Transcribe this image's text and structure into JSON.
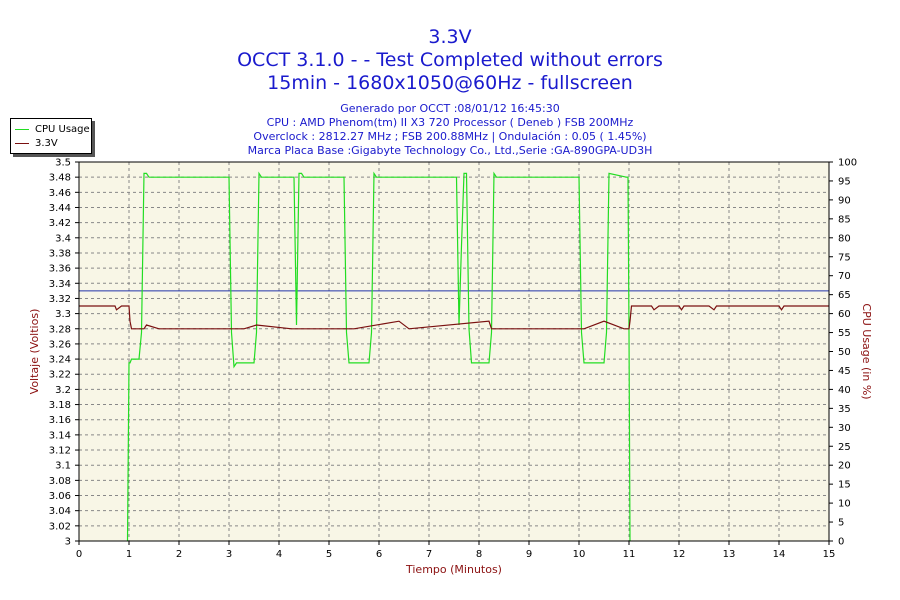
{
  "titles": {
    "line1": "3.3V",
    "line2": "OCCT 3.1.0 -  - Test Completed without errors",
    "line3": "15min - 1680x1050@60Hz - fullscreen"
  },
  "info": {
    "line1": "Generado por OCCT :08/01/12 16:45:30",
    "line2": "CPU : AMD Phenom(tm) II X3 720 Processor ( Deneb ) FSB 200MHz",
    "line3": "Overclock : 2812.27 MHz ; FSB 200.88MHz | Ondulación : 0.05 ( 1.45%)",
    "line4": "Marca Placa Base :Gigabyte Technology Co., Ltd.,Serie :GA-890GPA-UD3H"
  },
  "colors": {
    "cpu": "#22dd22",
    "voltage": "#7a1010",
    "ref_line": "#2233aa",
    "plot_bg": "#f8f6e6",
    "grid": "#888888",
    "axis_text": "#000000",
    "axis_label": "#8b1010",
    "xlabel": "#8b1010"
  },
  "chart_data": {
    "type": "line",
    "xlabel": "Tiempo (Minutos)",
    "ylabel_left": "Voltaje (Voltios)",
    "ylabel_right": "CPU Usage (in %)",
    "xlim": [
      0,
      15
    ],
    "ylim_left": [
      3.0,
      3.5
    ],
    "ylim_right": [
      0,
      100
    ],
    "x_ticks": [
      0,
      1,
      2,
      3,
      4,
      5,
      6,
      7,
      8,
      9,
      10,
      11,
      12,
      13,
      14,
      15
    ],
    "y_left_ticks": [
      3.5,
      3.48,
      3.46,
      3.44,
      3.42,
      3.4,
      3.38,
      3.36,
      3.34,
      3.32,
      3.3,
      3.28,
      3.26,
      3.24,
      3.22,
      3.2,
      3.18,
      3.16,
      3.14,
      3.12,
      3.1,
      3.08,
      3.06,
      3.04,
      3.02,
      3.0
    ],
    "y_left_tick_labels": [
      "3.5",
      "3.48",
      "3.46",
      "3.44",
      "3.42",
      "3.4",
      "3.38",
      "3.36",
      "3.34",
      "3.32",
      "3.3",
      "3.28",
      "3.26",
      "3.24",
      "3.22",
      "3.2",
      "3.18",
      "3.16",
      "3.14",
      "3.12",
      "3.1",
      "3.08",
      "3.06",
      "3.04",
      "3.02",
      "3"
    ],
    "y_right_ticks": [
      100,
      95,
      90,
      85,
      80,
      75,
      70,
      65,
      60,
      55,
      50,
      45,
      40,
      35,
      30,
      25,
      20,
      15,
      10,
      5,
      0
    ],
    "grid": true,
    "legend_position": "top-left",
    "reference_line": 3.33,
    "series": [
      {
        "name": "CPU Usage",
        "axis": "right",
        "x": [
          0.97,
          1.0,
          1.02,
          1.05,
          1.2,
          1.25,
          1.3,
          1.35,
          1.4,
          3.0,
          3.05,
          3.1,
          3.15,
          3.2,
          3.5,
          3.55,
          3.6,
          3.65,
          4.3,
          4.35,
          4.4,
          4.45,
          4.5,
          5.3,
          5.35,
          5.4,
          5.5,
          5.8,
          5.85,
          5.9,
          5.95,
          7.55,
          7.6,
          7.65,
          7.7,
          7.75,
          7.8,
          7.85,
          7.9,
          8.2,
          8.25,
          8.3,
          8.35,
          10.0,
          10.05,
          10.1,
          10.2,
          10.45,
          10.5,
          10.55,
          10.6,
          10.95,
          10.98,
          11.0,
          11.02
        ],
        "values": [
          0,
          47,
          47,
          48,
          48,
          55,
          97,
          97,
          96,
          96,
          55,
          46,
          47,
          47,
          47,
          55,
          97,
          96,
          96,
          57,
          97,
          97,
          96,
          96,
          55,
          47,
          47,
          47,
          55,
          97,
          96,
          96,
          57,
          78,
          97,
          97,
          56,
          47,
          47,
          47,
          55,
          97,
          96,
          96,
          55,
          47,
          47,
          47,
          47,
          55,
          97,
          96,
          96,
          55,
          0
        ]
      },
      {
        "name": "3.3V",
        "axis": "left",
        "x": [
          0,
          0.72,
          0.75,
          0.85,
          1.0,
          1.02,
          1.05,
          1.3,
          1.35,
          1.6,
          3.0,
          3.3,
          3.55,
          4.25,
          5.5,
          6.4,
          6.6,
          8.2,
          8.25,
          10.1,
          10.5,
          10.9,
          11.0,
          11.02,
          11.05,
          11.1,
          11.15,
          11.45,
          11.5,
          11.6,
          12.0,
          12.05,
          12.1,
          12.6,
          12.7,
          12.75,
          14.0,
          14.05,
          14.1,
          15.0
        ],
        "values": [
          3.31,
          3.31,
          3.305,
          3.31,
          3.31,
          3.29,
          3.28,
          3.28,
          3.285,
          3.28,
          3.28,
          3.28,
          3.285,
          3.28,
          3.28,
          3.29,
          3.28,
          3.29,
          3.28,
          3.28,
          3.29,
          3.28,
          3.28,
          3.29,
          3.31,
          3.31,
          3.31,
          3.31,
          3.305,
          3.31,
          3.31,
          3.305,
          3.31,
          3.31,
          3.305,
          3.31,
          3.31,
          3.305,
          3.31,
          3.31
        ]
      }
    ]
  },
  "legend": {
    "items": [
      {
        "label": "CPU Usage",
        "color": "#22dd22"
      },
      {
        "label": "3.3V",
        "color": "#7a1010"
      }
    ]
  }
}
